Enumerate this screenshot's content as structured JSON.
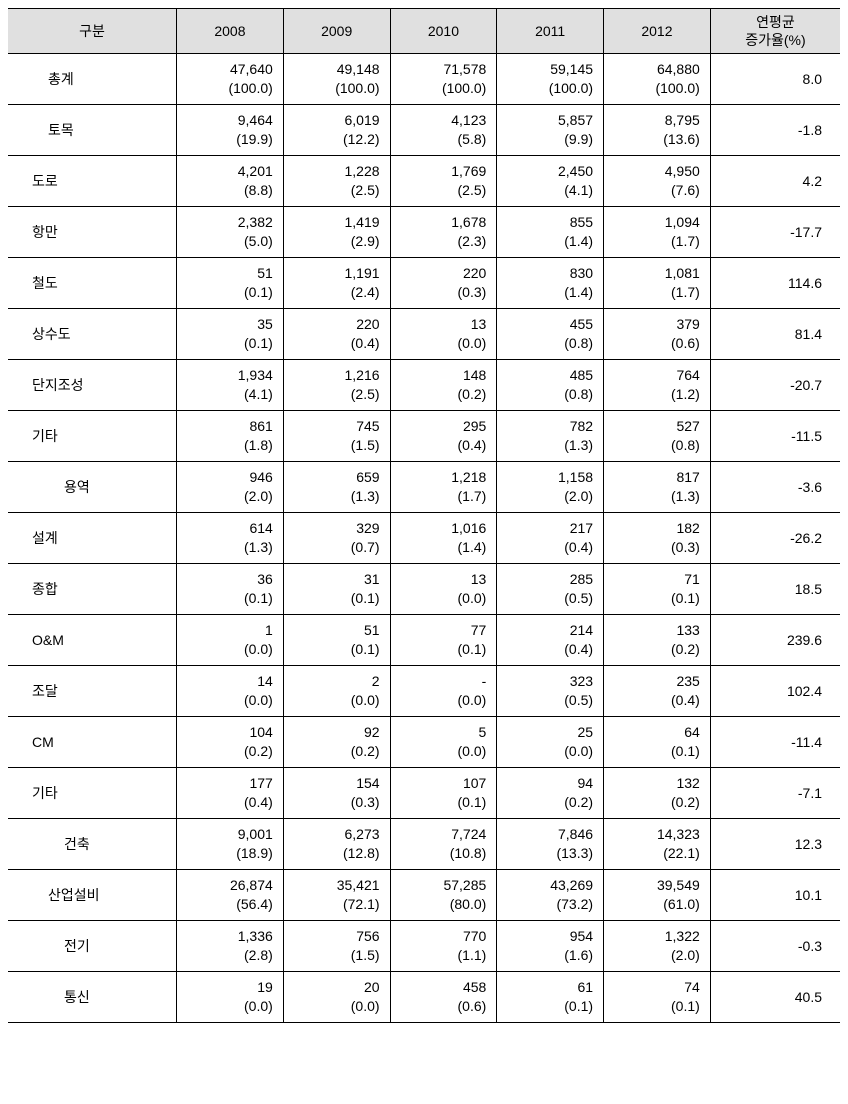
{
  "table": {
    "columns": [
      "구분",
      "2008",
      "2009",
      "2010",
      "2011",
      "2012",
      "연평균\n증가율(%)"
    ],
    "header_bg": "#e0e0e0",
    "border_color": "#000000",
    "font_size": 14,
    "rows": [
      {
        "label": "총계",
        "indent": 1,
        "y2008": "47,640",
        "p2008": "(100.0)",
        "y2009": "49,148",
        "p2009": "(100.0)",
        "y2010": "71,578",
        "p2010": "(100.0)",
        "y2011": "59,145",
        "p2011": "(100.0)",
        "y2012": "64,880",
        "p2012": "(100.0)",
        "rate": "8.0"
      },
      {
        "label": "토목",
        "indent": 1,
        "y2008": "9,464",
        "p2008": "(19.9)",
        "y2009": "6,019",
        "p2009": "(12.2)",
        "y2010": "4,123",
        "p2010": "(5.8)",
        "y2011": "5,857",
        "p2011": "(9.9)",
        "y2012": "8,795",
        "p2012": "(13.6)",
        "rate": "-1.8"
      },
      {
        "label": "도로",
        "indent": 0,
        "y2008": "4,201",
        "p2008": "(8.8)",
        "y2009": "1,228",
        "p2009": "(2.5)",
        "y2010": "1,769",
        "p2010": "(2.5)",
        "y2011": "2,450",
        "p2011": "(4.1)",
        "y2012": "4,950",
        "p2012": "(7.6)",
        "rate": "4.2"
      },
      {
        "label": "항만",
        "indent": 0,
        "y2008": "2,382",
        "p2008": "(5.0)",
        "y2009": "1,419",
        "p2009": "(2.9)",
        "y2010": "1,678",
        "p2010": "(2.3)",
        "y2011": "855",
        "p2011": "(1.4)",
        "y2012": "1,094",
        "p2012": "(1.7)",
        "rate": "-17.7"
      },
      {
        "label": "철도",
        "indent": 0,
        "y2008": "51",
        "p2008": "(0.1)",
        "y2009": "1,191",
        "p2009": "(2.4)",
        "y2010": "220",
        "p2010": "(0.3)",
        "y2011": "830",
        "p2011": "(1.4)",
        "y2012": "1,081",
        "p2012": "(1.7)",
        "rate": "114.6"
      },
      {
        "label": "상수도",
        "indent": 0,
        "y2008": "35",
        "p2008": "(0.1)",
        "y2009": "220",
        "p2009": "(0.4)",
        "y2010": "13",
        "p2010": "(0.0)",
        "y2011": "455",
        "p2011": "(0.8)",
        "y2012": "379",
        "p2012": "(0.6)",
        "rate": "81.4"
      },
      {
        "label": "단지조성",
        "indent": 0,
        "y2008": "1,934",
        "p2008": "(4.1)",
        "y2009": "1,216",
        "p2009": "(2.5)",
        "y2010": "148",
        "p2010": "(0.2)",
        "y2011": "485",
        "p2011": "(0.8)",
        "y2012": "764",
        "p2012": "(1.2)",
        "rate": "-20.7"
      },
      {
        "label": "기타",
        "indent": 0,
        "y2008": "861",
        "p2008": "(1.8)",
        "y2009": "745",
        "p2009": "(1.5)",
        "y2010": "295",
        "p2010": "(0.4)",
        "y2011": "782",
        "p2011": "(1.3)",
        "y2012": "527",
        "p2012": "(0.8)",
        "rate": "-11.5"
      },
      {
        "label": "용역",
        "indent": 2,
        "y2008": "946",
        "p2008": "(2.0)",
        "y2009": "659",
        "p2009": "(1.3)",
        "y2010": "1,218",
        "p2010": "(1.7)",
        "y2011": "1,158",
        "p2011": "(2.0)",
        "y2012": "817",
        "p2012": "(1.3)",
        "rate": "-3.6"
      },
      {
        "label": "설계",
        "indent": 0,
        "y2008": "614",
        "p2008": "(1.3)",
        "y2009": "329",
        "p2009": "(0.7)",
        "y2010": "1,016",
        "p2010": "(1.4)",
        "y2011": "217",
        "p2011": "(0.4)",
        "y2012": "182",
        "p2012": "(0.3)",
        "rate": "-26.2"
      },
      {
        "label": "종합",
        "indent": 0,
        "y2008": "36",
        "p2008": "(0.1)",
        "y2009": "31",
        "p2009": "(0.1)",
        "y2010": "13",
        "p2010": "(0.0)",
        "y2011": "285",
        "p2011": "(0.5)",
        "y2012": "71",
        "p2012": "(0.1)",
        "rate": "18.5"
      },
      {
        "label": "O&M",
        "indent": 0,
        "y2008": "1",
        "p2008": "(0.0)",
        "y2009": "51",
        "p2009": "(0.1)",
        "y2010": "77",
        "p2010": "(0.1)",
        "y2011": "214",
        "p2011": "(0.4)",
        "y2012": "133",
        "p2012": "(0.2)",
        "rate": "239.6"
      },
      {
        "label": "조달",
        "indent": 0,
        "y2008": "14",
        "p2008": "(0.0)",
        "y2009": "2",
        "p2009": "(0.0)",
        "y2010": "-",
        "p2010": "(0.0)",
        "y2011": "323",
        "p2011": "(0.5)",
        "y2012": "235",
        "p2012": "(0.4)",
        "rate": "102.4"
      },
      {
        "label": "CM",
        "indent": 0,
        "y2008": "104",
        "p2008": "(0.2)",
        "y2009": "92",
        "p2009": "(0.2)",
        "y2010": "5",
        "p2010": "(0.0)",
        "y2011": "25",
        "p2011": "(0.0)",
        "y2012": "64",
        "p2012": "(0.1)",
        "rate": "-11.4"
      },
      {
        "label": "기타",
        "indent": 0,
        "y2008": "177",
        "p2008": "(0.4)",
        "y2009": "154",
        "p2009": "(0.3)",
        "y2010": "107",
        "p2010": "(0.1)",
        "y2011": "94",
        "p2011": "(0.2)",
        "y2012": "132",
        "p2012": "(0.2)",
        "rate": "-7.1"
      },
      {
        "label": "건축",
        "indent": 2,
        "y2008": "9,001",
        "p2008": "(18.9)",
        "y2009": "6,273",
        "p2009": "(12.8)",
        "y2010": "7,724",
        "p2010": "(10.8)",
        "y2011": "7,846",
        "p2011": "(13.3)",
        "y2012": "14,323",
        "p2012": "(22.1)",
        "rate": "12.3"
      },
      {
        "label": "산업설비",
        "indent": 1,
        "y2008": "26,874",
        "p2008": "(56.4)",
        "y2009": "35,421",
        "p2009": "(72.1)",
        "y2010": "57,285",
        "p2010": "(80.0)",
        "y2011": "43,269",
        "p2011": "(73.2)",
        "y2012": "39,549",
        "p2012": "(61.0)",
        "rate": "10.1"
      },
      {
        "label": "전기",
        "indent": 2,
        "y2008": "1,336",
        "p2008": "(2.8)",
        "y2009": "756",
        "p2009": "(1.5)",
        "y2010": "770",
        "p2010": "(1.1)",
        "y2011": "954",
        "p2011": "(1.6)",
        "y2012": "1,322",
        "p2012": "(2.0)",
        "rate": "-0.3"
      },
      {
        "label": "통신",
        "indent": 2,
        "y2008": "19",
        "p2008": "(0.0)",
        "y2009": "20",
        "p2009": "(0.0)",
        "y2010": "458",
        "p2010": "(0.6)",
        "y2011": "61",
        "p2011": "(0.1)",
        "y2012": "74",
        "p2012": "(0.1)",
        "rate": "40.5"
      }
    ]
  }
}
